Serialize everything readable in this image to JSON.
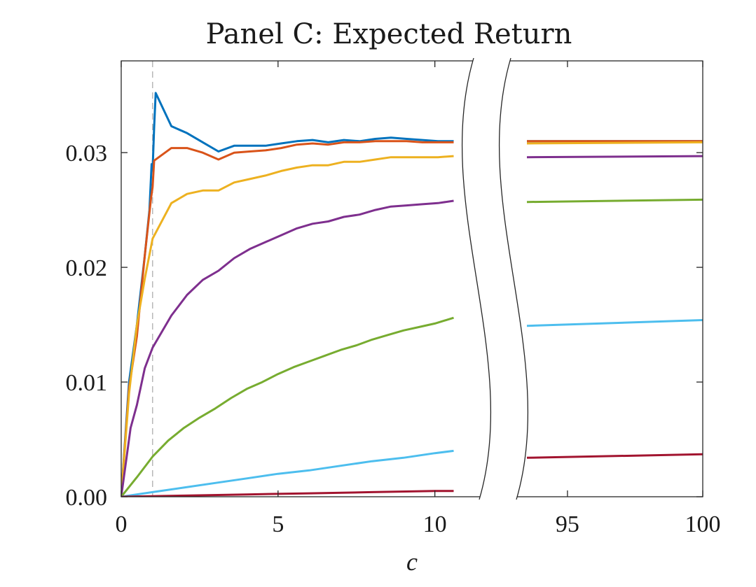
{
  "chart_data": {
    "type": "line",
    "title": "Panel C: Expected Return",
    "xlabel": "c",
    "ylabel": "",
    "ylim": [
      0,
      0.038
    ],
    "yticks": [
      0,
      0.01,
      0.02,
      0.03
    ],
    "ytick_labels": [
      "0.00",
      "0.01",
      "0.02",
      "0.03"
    ],
    "x_break": {
      "left_range": [
        0,
        10.7
      ],
      "right_range": [
        93.5,
        100
      ]
    },
    "xticks": [
      0,
      5,
      10,
      95,
      100
    ],
    "xtick_labels": [
      "0",
      "5",
      "10",
      "95",
      "100"
    ],
    "reference_line": {
      "x": 1,
      "style": "dashed"
    },
    "grid": false,
    "legend": "none",
    "series": [
      {
        "color": "#0072BD",
        "left": [
          [
            0,
            0
          ],
          [
            0.25,
            0.01
          ],
          [
            0.5,
            0.015
          ],
          [
            0.75,
            0.021
          ],
          [
            0.9,
            0.025
          ],
          [
            0.97,
            0.029
          ],
          [
            1.0,
            0.0285
          ],
          [
            1.05,
            0.0322
          ],
          [
            1.1,
            0.0352
          ],
          [
            1.6,
            0.0323
          ],
          [
            2.1,
            0.0317
          ],
          [
            2.6,
            0.0309
          ],
          [
            3.1,
            0.0301
          ],
          [
            3.6,
            0.0306
          ],
          [
            4.1,
            0.0306
          ],
          [
            4.6,
            0.0306
          ],
          [
            5.1,
            0.0308
          ],
          [
            5.6,
            0.031
          ],
          [
            6.1,
            0.0311
          ],
          [
            6.6,
            0.0309
          ],
          [
            7.1,
            0.0311
          ],
          [
            7.6,
            0.031
          ],
          [
            8.1,
            0.0312
          ],
          [
            8.6,
            0.0313
          ],
          [
            9.1,
            0.0312
          ],
          [
            9.6,
            0.0311
          ],
          [
            10.1,
            0.031
          ],
          [
            10.6,
            0.031
          ]
        ],
        "right": [
          [
            93.5,
            0.031
          ],
          [
            100,
            0.031
          ]
        ]
      },
      {
        "color": "#D95319",
        "left": [
          [
            0,
            0
          ],
          [
            0.25,
            0.0095
          ],
          [
            0.5,
            0.014
          ],
          [
            0.75,
            0.021
          ],
          [
            0.95,
            0.026
          ],
          [
            1.0,
            0.027
          ],
          [
            1.05,
            0.0293
          ],
          [
            1.6,
            0.0304
          ],
          [
            2.1,
            0.0304
          ],
          [
            2.6,
            0.03
          ],
          [
            3.1,
            0.0294
          ],
          [
            3.6,
            0.03
          ],
          [
            4.1,
            0.0301
          ],
          [
            4.6,
            0.0302
          ],
          [
            5.1,
            0.0304
          ],
          [
            5.6,
            0.0307
          ],
          [
            6.1,
            0.0308
          ],
          [
            6.6,
            0.0307
          ],
          [
            7.1,
            0.0309
          ],
          [
            7.6,
            0.0309
          ],
          [
            8.1,
            0.031
          ],
          [
            8.6,
            0.031
          ],
          [
            9.1,
            0.031
          ],
          [
            9.6,
            0.0309
          ],
          [
            10.1,
            0.0309
          ],
          [
            10.6,
            0.0309
          ]
        ],
        "right": [
          [
            93.5,
            0.031
          ],
          [
            100,
            0.031
          ]
        ]
      },
      {
        "color": "#EDB120",
        "left": [
          [
            0,
            0
          ],
          [
            0.25,
            0.009
          ],
          [
            0.5,
            0.015
          ],
          [
            0.75,
            0.019
          ],
          [
            1.0,
            0.0225
          ],
          [
            1.6,
            0.0256
          ],
          [
            2.1,
            0.0264
          ],
          [
            2.6,
            0.0267
          ],
          [
            3.1,
            0.0267
          ],
          [
            3.6,
            0.0274
          ],
          [
            4.1,
            0.0277
          ],
          [
            4.6,
            0.028
          ],
          [
            5.1,
            0.0284
          ],
          [
            5.6,
            0.0287
          ],
          [
            6.1,
            0.0289
          ],
          [
            6.6,
            0.0289
          ],
          [
            7.1,
            0.0292
          ],
          [
            7.6,
            0.0292
          ],
          [
            8.1,
            0.0294
          ],
          [
            8.6,
            0.0296
          ],
          [
            9.1,
            0.0296
          ],
          [
            9.6,
            0.0296
          ],
          [
            10.1,
            0.0296
          ],
          [
            10.6,
            0.0297
          ]
        ],
        "right": [
          [
            93.5,
            0.0308
          ],
          [
            100,
            0.0309
          ]
        ]
      },
      {
        "color": "#7E2F8E",
        "left": [
          [
            0,
            0
          ],
          [
            0.3,
            0.006
          ],
          [
            0.5,
            0.008
          ],
          [
            0.75,
            0.0112
          ],
          [
            1.0,
            0.013
          ],
          [
            1.6,
            0.0158
          ],
          [
            2.1,
            0.0176
          ],
          [
            2.6,
            0.0189
          ],
          [
            3.1,
            0.0197
          ],
          [
            3.6,
            0.0208
          ],
          [
            4.1,
            0.0216
          ],
          [
            4.6,
            0.0222
          ],
          [
            5.1,
            0.0228
          ],
          [
            5.6,
            0.0234
          ],
          [
            6.1,
            0.0238
          ],
          [
            6.6,
            0.024
          ],
          [
            7.1,
            0.0244
          ],
          [
            7.6,
            0.0246
          ],
          [
            8.1,
            0.025
          ],
          [
            8.6,
            0.0253
          ],
          [
            9.1,
            0.0254
          ],
          [
            9.6,
            0.0255
          ],
          [
            10.1,
            0.0256
          ],
          [
            10.6,
            0.0258
          ]
        ],
        "right": [
          [
            93.5,
            0.0296
          ],
          [
            100,
            0.0297
          ]
        ]
      },
      {
        "color": "#77AC30",
        "left": [
          [
            0,
            0
          ],
          [
            0.5,
            0.0017
          ],
          [
            1.0,
            0.0035
          ],
          [
            1.5,
            0.0049
          ],
          [
            2.0,
            0.006
          ],
          [
            2.5,
            0.0069
          ],
          [
            3.0,
            0.0077
          ],
          [
            3.5,
            0.0086
          ],
          [
            4.0,
            0.0094
          ],
          [
            4.5,
            0.01
          ],
          [
            5.0,
            0.0107
          ],
          [
            5.5,
            0.0113
          ],
          [
            6.0,
            0.0118
          ],
          [
            6.5,
            0.0123
          ],
          [
            7.0,
            0.0128
          ],
          [
            7.5,
            0.0132
          ],
          [
            8.0,
            0.0137
          ],
          [
            8.5,
            0.0141
          ],
          [
            9.0,
            0.0145
          ],
          [
            9.5,
            0.0148
          ],
          [
            10.0,
            0.0151
          ],
          [
            10.6,
            0.0156
          ]
        ],
        "right": [
          [
            93.5,
            0.0257
          ],
          [
            100,
            0.0259
          ]
        ]
      },
      {
        "color": "#4DBEEE",
        "left": [
          [
            0,
            0
          ],
          [
            1,
            0.0004
          ],
          [
            2,
            0.0008
          ],
          [
            3,
            0.0012
          ],
          [
            4,
            0.0016
          ],
          [
            5,
            0.002
          ],
          [
            6,
            0.0023
          ],
          [
            7,
            0.0027
          ],
          [
            8,
            0.0031
          ],
          [
            9,
            0.0034
          ],
          [
            10,
            0.0038
          ],
          [
            10.6,
            0.004
          ]
        ],
        "right": [
          [
            93.5,
            0.0149
          ],
          [
            100,
            0.0154
          ]
        ]
      },
      {
        "color": "#A2142F",
        "left": [
          [
            0,
            0
          ],
          [
            2,
            0.0001
          ],
          [
            4,
            0.0002
          ],
          [
            6,
            0.0003
          ],
          [
            8,
            0.0004
          ],
          [
            10,
            0.0005
          ],
          [
            10.6,
            0.0005
          ]
        ],
        "right": [
          [
            93.5,
            0.0034
          ],
          [
            100,
            0.0037
          ]
        ]
      }
    ]
  }
}
